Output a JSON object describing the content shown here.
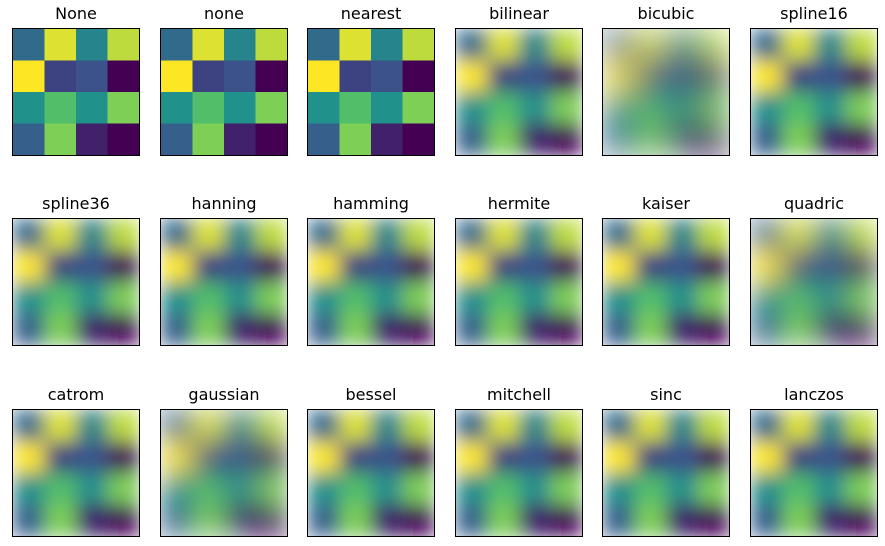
{
  "chart_data": {
    "type": "heatmap",
    "figure_title": "",
    "grid": "3x6",
    "colormap": "viridis",
    "colormap_stops": [
      "#440154",
      "#3b528b",
      "#21918c",
      "#5ec962",
      "#fde725"
    ],
    "axes_ticks": false,
    "matrix": [
      [
        0.35,
        0.95,
        0.45,
        0.9
      ],
      [
        1.0,
        0.2,
        0.25,
        0.0
      ],
      [
        0.5,
        0.7,
        0.5,
        0.8
      ],
      [
        0.3,
        0.8,
        0.1,
        0.0
      ]
    ],
    "value_range": [
      0,
      1
    ],
    "panels": [
      {
        "title": "None",
        "interpolation": "none",
        "blocky": true
      },
      {
        "title": "none",
        "interpolation": "none",
        "blocky": true
      },
      {
        "title": "nearest",
        "interpolation": "nearest",
        "blocky": true
      },
      {
        "title": "bilinear",
        "interpolation": "bilinear",
        "blocky": false
      },
      {
        "title": "bicubic",
        "interpolation": "bicubic",
        "blocky": false
      },
      {
        "title": "spline16",
        "interpolation": "spline16",
        "blocky": false
      },
      {
        "title": "spline36",
        "interpolation": "spline36",
        "blocky": false
      },
      {
        "title": "hanning",
        "interpolation": "hanning",
        "blocky": false
      },
      {
        "title": "hamming",
        "interpolation": "hamming",
        "blocky": false
      },
      {
        "title": "hermite",
        "interpolation": "hermite",
        "blocky": false
      },
      {
        "title": "kaiser",
        "interpolation": "kaiser",
        "blocky": false
      },
      {
        "title": "quadric",
        "interpolation": "quadric",
        "blocky": false
      },
      {
        "title": "catrom",
        "interpolation": "catrom",
        "blocky": false
      },
      {
        "title": "gaussian",
        "interpolation": "gaussian",
        "blocky": false
      },
      {
        "title": "bessel",
        "interpolation": "bessel",
        "blocky": false
      },
      {
        "title": "mitchell",
        "interpolation": "mitchell",
        "blocky": false
      },
      {
        "title": "sinc",
        "interpolation": "sinc",
        "blocky": false
      },
      {
        "title": "lanczos",
        "interpolation": "lanczos",
        "blocky": false
      }
    ]
  }
}
